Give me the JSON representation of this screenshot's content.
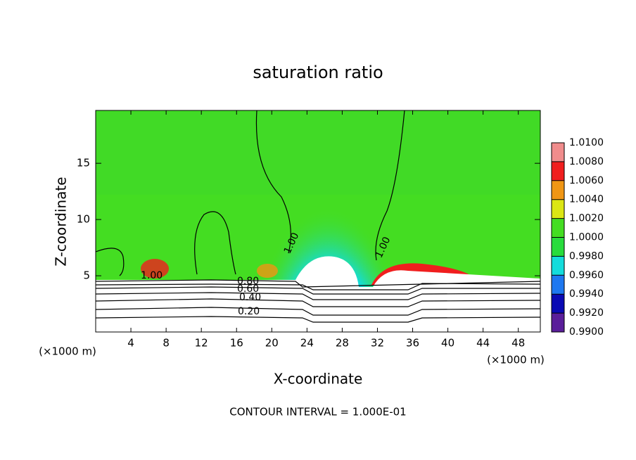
{
  "chart_data": {
    "type": "contour",
    "title": "saturation ratio",
    "x_label": "X-coordinate",
    "y_label": "Z-coordinate",
    "unit_label": "(×1000 m)",
    "xlim": [
      0,
      50.5
    ],
    "xticks": [
      4,
      8,
      12,
      16,
      20,
      24,
      28,
      32,
      36,
      40,
      44,
      48
    ],
    "ylim": [
      0,
      19.7
    ],
    "yticks": [
      5,
      10,
      15
    ],
    "colorbar": {
      "lim": [
        0.99,
        1.01
      ],
      "ticks": [
        {
          "value": 0.99,
          "label": "0.9900"
        },
        {
          "value": 0.992,
          "label": "0.9920"
        },
        {
          "value": 0.994,
          "label": "0.9940"
        },
        {
          "value": 0.996,
          "label": "0.9960"
        },
        {
          "value": 0.998,
          "label": "0.9980"
        },
        {
          "value": 1.0,
          "label": "1.0000"
        },
        {
          "value": 1.002,
          "label": "1.0020"
        },
        {
          "value": 1.004,
          "label": "1.0040"
        },
        {
          "value": 1.006,
          "label": "1.0060"
        },
        {
          "value": 1.008,
          "label": "1.0080"
        },
        {
          "value": 1.01,
          "label": "1.0100"
        }
      ],
      "colors": [
        "#5a1e9a",
        "#0a0ab4",
        "#1e78f0",
        "#14dcdc",
        "#28dc3c",
        "#44dd22",
        "#dce614",
        "#f09614",
        "#f01e1e",
        "#f08c8c"
      ]
    },
    "contour_labels": [
      {
        "value": 1.0,
        "label": "1.00"
      },
      {
        "value": 0.8,
        "label": "0.80"
      },
      {
        "value": 0.6,
        "label": "0.60"
      },
      {
        "value": 0.4,
        "label": "0.40"
      },
      {
        "value": 0.2,
        "label": "0.20"
      }
    ],
    "footnote": "CONTOUR INTERVAL = 1.000E-01"
  }
}
